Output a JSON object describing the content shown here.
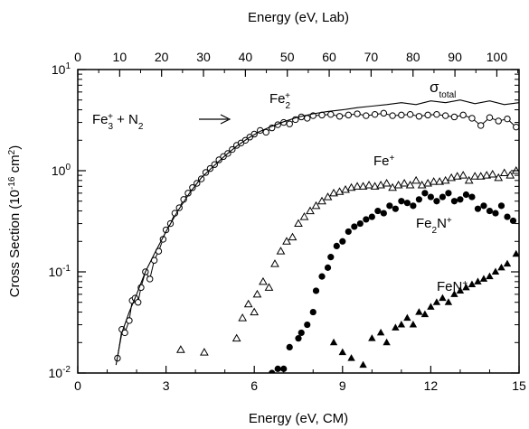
{
  "chart_data": {
    "type": "scatter",
    "x_axis": {
      "label": "Energy (eV, CM)",
      "range": [
        0,
        15
      ],
      "ticks": [
        "0",
        "3",
        "6",
        "9",
        "12",
        "15"
      ]
    },
    "top_axis": {
      "label": "Energy (eV, Lab)",
      "range": [
        0,
        105.3
      ],
      "ticks": [
        "0",
        "10",
        "20",
        "30",
        "40",
        "50",
        "60",
        "70",
        "80",
        "90",
        "100"
      ]
    },
    "y_axis": {
      "label": "Cross Section (10⁻¹⁶ cm²)",
      "label_parts": {
        "main": "Cross Section (10",
        "exp": "-16",
        "unit": " cm",
        "unit_exp": "2",
        "close": ")"
      },
      "scale": "log",
      "range": [
        0.01,
        10
      ],
      "ticks": [
        {
          "value": 0.01,
          "base": "10",
          "exp": "-2"
        },
        {
          "value": 0.1,
          "base": "10",
          "exp": "-1"
        },
        {
          "value": 1,
          "base": "10",
          "exp": "0"
        },
        {
          "value": 10,
          "base": "10",
          "exp": "1"
        }
      ]
    },
    "reaction": {
      "reactant": "Fe",
      "reactant_sub": "3",
      "reactant_sup": "+",
      "plus": " + ",
      "partner": "N",
      "partner_sub": "2"
    },
    "series": [
      {
        "name": "Fe₂⁺",
        "marker": "open-circle",
        "x": [
          1.35,
          1.5,
          1.6,
          1.75,
          1.85,
          1.95,
          2.05,
          2.15,
          2.3,
          2.45,
          2.6,
          2.75,
          2.9,
          3.0,
          3.15,
          3.3,
          3.45,
          3.6,
          3.75,
          3.9,
          4.05,
          4.2,
          4.35,
          4.5,
          4.65,
          4.8,
          4.95,
          5.1,
          5.25,
          5.4,
          5.55,
          5.7,
          5.85,
          6.0,
          6.2,
          6.4,
          6.6,
          6.8,
          7.0,
          7.2,
          7.4,
          7.6,
          7.8,
          8.0,
          8.3,
          8.6,
          8.9,
          9.2,
          9.5,
          9.8,
          10.1,
          10.4,
          10.7,
          11.0,
          11.3,
          11.6,
          11.9,
          12.2,
          12.5,
          12.8,
          13.1,
          13.4,
          13.7,
          14.0,
          14.3,
          14.6,
          14.9
        ],
        "y": [
          0.014,
          0.027,
          0.025,
          0.033,
          0.052,
          0.055,
          0.05,
          0.07,
          0.1,
          0.085,
          0.13,
          0.16,
          0.21,
          0.26,
          0.3,
          0.38,
          0.43,
          0.52,
          0.6,
          0.68,
          0.75,
          0.83,
          0.96,
          1.05,
          1.15,
          1.28,
          1.38,
          1.48,
          1.62,
          1.78,
          1.88,
          2.0,
          2.15,
          2.3,
          2.5,
          2.4,
          2.65,
          2.85,
          3.0,
          2.9,
          3.2,
          3.4,
          3.3,
          3.5,
          3.55,
          3.6,
          3.45,
          3.55,
          3.65,
          3.5,
          3.6,
          3.7,
          3.5,
          3.55,
          3.6,
          3.45,
          3.55,
          3.6,
          3.5,
          3.4,
          3.55,
          3.3,
          2.8,
          3.35,
          3.1,
          3.25,
          2.7
        ]
      },
      {
        "name": "σ_total",
        "marker": "line",
        "x": [
          1.3,
          1.5,
          1.75,
          2.0,
          2.3,
          2.6,
          3.0,
          3.4,
          3.8,
          4.2,
          4.6,
          5.0,
          5.4,
          5.8,
          6.2,
          6.6,
          7.0,
          7.5,
          8.0,
          8.5,
          9.0,
          9.5,
          10.0,
          10.5,
          11.0,
          11.5,
          12.0,
          12.5,
          13.0,
          13.5,
          14.0,
          14.5,
          15.0
        ],
        "y": [
          0.012,
          0.025,
          0.04,
          0.06,
          0.1,
          0.15,
          0.25,
          0.4,
          0.6,
          0.85,
          1.1,
          1.4,
          1.75,
          2.1,
          2.45,
          2.75,
          3.05,
          3.4,
          3.65,
          3.85,
          4.0,
          4.2,
          4.35,
          4.5,
          4.7,
          4.5,
          4.9,
          4.7,
          5.0,
          4.6,
          4.9,
          4.5,
          4.7
        ]
      },
      {
        "name": "Fe⁺",
        "marker": "open-triangle",
        "x": [
          3.5,
          4.3,
          5.4,
          5.6,
          5.8,
          6.0,
          6.1,
          6.3,
          6.5,
          6.7,
          6.9,
          7.1,
          7.3,
          7.5,
          7.7,
          7.9,
          8.1,
          8.3,
          8.5,
          8.7,
          8.9,
          9.1,
          9.3,
          9.5,
          9.7,
          9.9,
          10.1,
          10.3,
          10.5,
          10.7,
          10.9,
          11.1,
          11.3,
          11.5,
          11.7,
          11.9,
          12.1,
          12.3,
          12.5,
          12.7,
          12.9,
          13.1,
          13.3,
          13.5,
          13.7,
          13.9,
          14.1,
          14.3,
          14.5,
          14.7,
          14.9
        ],
        "y": [
          0.017,
          0.016,
          0.022,
          0.035,
          0.048,
          0.04,
          0.06,
          0.08,
          0.07,
          0.12,
          0.16,
          0.2,
          0.22,
          0.3,
          0.35,
          0.4,
          0.45,
          0.5,
          0.55,
          0.6,
          0.62,
          0.65,
          0.68,
          0.7,
          0.7,
          0.72,
          0.7,
          0.72,
          0.75,
          0.68,
          0.72,
          0.75,
          0.72,
          0.8,
          0.72,
          0.75,
          0.78,
          0.78,
          0.8,
          0.85,
          0.88,
          0.9,
          0.8,
          0.88,
          0.88,
          0.9,
          0.92,
          0.85,
          0.95,
          0.9,
          1.0
        ]
      },
      {
        "name": "Fe₂N⁺",
        "marker": "filled-circle",
        "x": [
          6.6,
          6.8,
          7.0,
          7.2,
          7.5,
          7.6,
          7.8,
          8.0,
          8.1,
          8.3,
          8.5,
          8.6,
          8.8,
          9.0,
          9.2,
          9.4,
          9.6,
          9.8,
          10.0,
          10.2,
          10.4,
          10.6,
          10.8,
          11.0,
          11.2,
          11.4,
          11.6,
          11.8,
          12.0,
          12.2,
          12.4,
          12.6,
          12.8,
          13.0,
          13.2,
          13.4,
          13.6,
          13.8,
          14.0,
          14.2,
          14.4,
          14.6,
          14.8
        ],
        "y": [
          0.01,
          0.011,
          0.011,
          0.018,
          0.022,
          0.025,
          0.03,
          0.04,
          0.065,
          0.09,
          0.11,
          0.14,
          0.18,
          0.2,
          0.25,
          0.28,
          0.3,
          0.33,
          0.35,
          0.4,
          0.38,
          0.45,
          0.42,
          0.5,
          0.48,
          0.45,
          0.52,
          0.6,
          0.55,
          0.5,
          0.55,
          0.6,
          0.5,
          0.52,
          0.58,
          0.55,
          0.42,
          0.45,
          0.4,
          0.38,
          0.45,
          0.35,
          0.32
        ]
      },
      {
        "name": "FeN⁺",
        "marker": "filled-triangle",
        "x": [
          8.7,
          9.0,
          9.3,
          9.7,
          10.0,
          10.3,
          10.5,
          10.8,
          11.0,
          11.2,
          11.4,
          11.6,
          11.8,
          12.0,
          12.2,
          12.4,
          12.6,
          12.8,
          13.0,
          13.2,
          13.4,
          13.6,
          13.8,
          14.0,
          14.2,
          14.4,
          14.6,
          14.9
        ],
        "y": [
          0.02,
          0.016,
          0.014,
          0.012,
          0.022,
          0.025,
          0.02,
          0.028,
          0.03,
          0.035,
          0.03,
          0.04,
          0.038,
          0.045,
          0.05,
          0.055,
          0.05,
          0.06,
          0.065,
          0.07,
          0.075,
          0.08,
          0.085,
          0.09,
          0.1,
          0.11,
          0.12,
          0.15
        ]
      }
    ],
    "legend": "none",
    "grid": false
  }
}
